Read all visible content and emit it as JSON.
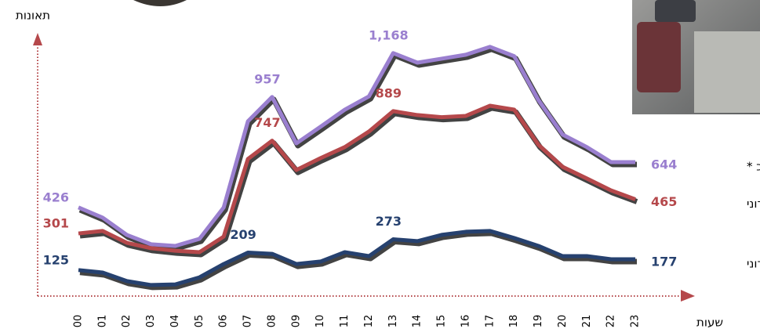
{
  "chart_data": {
    "type": "line",
    "y_label": "תאונות",
    "x_label": "שעות",
    "categories": [
      "00",
      "01",
      "02",
      "03",
      "04",
      "05",
      "06",
      "07",
      "08",
      "09",
      "10",
      "11",
      "12",
      "13",
      "14",
      "15",
      "16",
      "17",
      "18",
      "19",
      "20",
      "21",
      "22",
      "23"
    ],
    "ylim": [
      0,
      1250
    ],
    "series": [
      {
        "name": "סה\"כ *",
        "color": "#9a7fcf",
        "values": [
          426,
          377,
          294,
          249,
          241,
          275,
          426,
          840,
          957,
          734,
          814,
          896,
          960,
          1168,
          1122,
          1141,
          1160,
          1198,
          1153,
          942,
          776,
          716,
          644,
          644
        ],
        "value_labels": [
          "426",
          null,
          null,
          null,
          null,
          null,
          null,
          null,
          "957",
          null,
          null,
          null,
          null,
          "1,168",
          null,
          null,
          null,
          null,
          null,
          null,
          null,
          null,
          null,
          "644"
        ]
      },
      {
        "name": "עירוני",
        "color": "#b5484b",
        "values": [
          301,
          313,
          256,
          230,
          218,
          211,
          286,
          659,
          747,
          606,
          663,
          716,
          791,
          889,
          870,
          860,
          866,
          915,
          896,
          727,
          621,
          565,
          508,
          465
        ],
        "value_labels": [
          "301",
          null,
          null,
          null,
          null,
          null,
          null,
          null,
          "747",
          null,
          null,
          null,
          null,
          "889",
          null,
          null,
          null,
          null,
          null,
          null,
          null,
          null,
          null,
          "465"
        ]
      },
      {
        "name": "בינעירוני",
        "color": "#26416f",
        "values": [
          125,
          113,
          72,
          53,
          56,
          90,
          154,
          209,
          203,
          154,
          166,
          211,
          192,
          273,
          264,
          294,
          309,
          313,
          279,
          241,
          192,
          192,
          177,
          177
        ],
        "value_labels": [
          "125",
          null,
          null,
          null,
          null,
          null,
          null,
          "209",
          null,
          null,
          null,
          null,
          null,
          "273",
          null,
          null,
          null,
          null,
          null,
          null,
          null,
          null,
          null,
          "177"
        ]
      }
    ]
  }
}
